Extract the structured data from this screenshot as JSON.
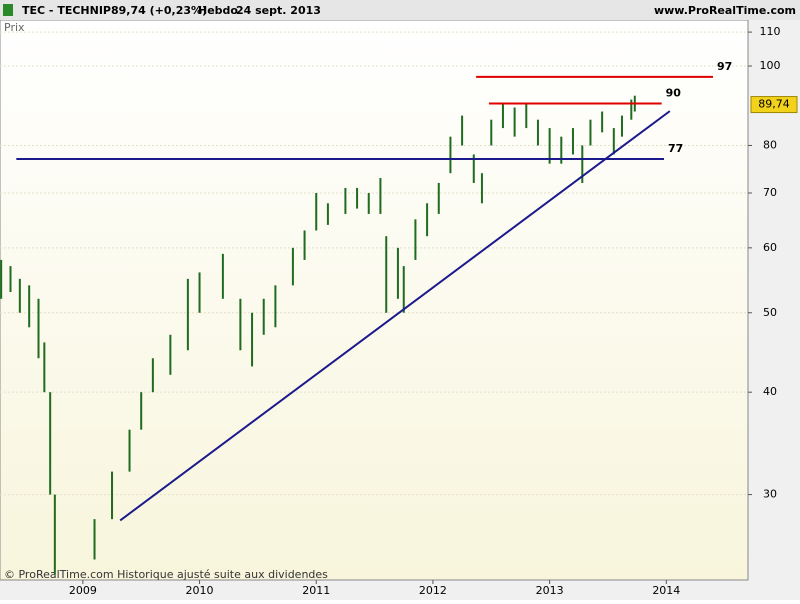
{
  "chart_data": {
    "type": "ohlc",
    "symbol": "TEC - TECHNIP",
    "quote": "89,74 (+0,23%)",
    "period": "Hebdo",
    "date": "24 sept. 2013",
    "site": "www.ProRealTime.com",
    "y_label": "Prix",
    "footer": "© ProRealTime.com Historique ajusté suite aux dividendes",
    "log_scale": true,
    "color": "#1f6b1f",
    "xlim": [
      2008.29,
      2014.7
    ],
    "xticks": [
      2009,
      2010,
      2011,
      2012,
      2013,
      2014
    ],
    "ylim": [
      23.6,
      113.8
    ],
    "yticks": [
      30,
      40,
      50,
      60,
      70,
      80,
      100,
      110
    ],
    "x": [
      2008.3,
      2008.38,
      2008.46,
      2008.54,
      2008.62,
      2008.67,
      2008.72,
      2008.76,
      2009.1,
      2009.25,
      2009.4,
      2009.5,
      2009.6,
      2009.75,
      2009.9,
      2010.0,
      2010.2,
      2010.35,
      2010.45,
      2010.55,
      2010.65,
      2010.8,
      2010.9,
      2011.0,
      2011.1,
      2011.25,
      2011.35,
      2011.45,
      2011.55,
      2011.6,
      2011.7,
      2011.75,
      2011.85,
      2011.95,
      2012.05,
      2012.15,
      2012.25,
      2012.35,
      2012.42,
      2012.5,
      2012.6,
      2012.7,
      2012.8,
      2012.9,
      2013.0,
      2013.1,
      2013.2,
      2013.28,
      2013.35,
      2013.45,
      2013.55,
      2013.62,
      2013.7,
      2013.73
    ],
    "high": [
      58,
      57,
      55,
      54,
      52,
      46,
      40,
      30,
      28,
      32,
      36,
      40,
      44,
      47,
      55,
      56,
      59,
      52,
      50,
      52,
      54,
      60,
      63,
      70,
      68,
      71,
      71,
      70,
      73,
      62,
      60,
      57,
      65,
      68,
      72,
      82,
      87,
      78,
      74,
      86,
      90,
      89,
      90,
      86,
      84,
      82,
      84,
      80,
      86,
      88,
      84,
      87,
      91,
      92
    ],
    "low": [
      52,
      53,
      50,
      48,
      44,
      40,
      30,
      24,
      25,
      28,
      32,
      36,
      40,
      42,
      45,
      50,
      52,
      45,
      43,
      47,
      48,
      54,
      58,
      63,
      64,
      66,
      67,
      66,
      66,
      50,
      52,
      50,
      58,
      62,
      66,
      74,
      80,
      72,
      68,
      80,
      84,
      82,
      84,
      80,
      76,
      76,
      78,
      72,
      80,
      83,
      78,
      82,
      86,
      88
    ],
    "levels": [
      {
        "value": 97,
        "color": "#e00000",
        "x": [
          2012.37,
          2014.4
        ]
      },
      {
        "value": 90,
        "color": "#e00000",
        "x": [
          2012.48,
          2013.96
        ]
      },
      {
        "value": 77,
        "color": "#1a1a8c",
        "x": [
          2008.43,
          2013.98
        ]
      }
    ],
    "trendline": {
      "color": "#1a1a8c",
      "x": [
        2009.32,
        2014.03
      ],
      "y": [
        27.9,
        88.1
      ]
    },
    "last_price": 89.74,
    "last_price_label": "89,74"
  }
}
